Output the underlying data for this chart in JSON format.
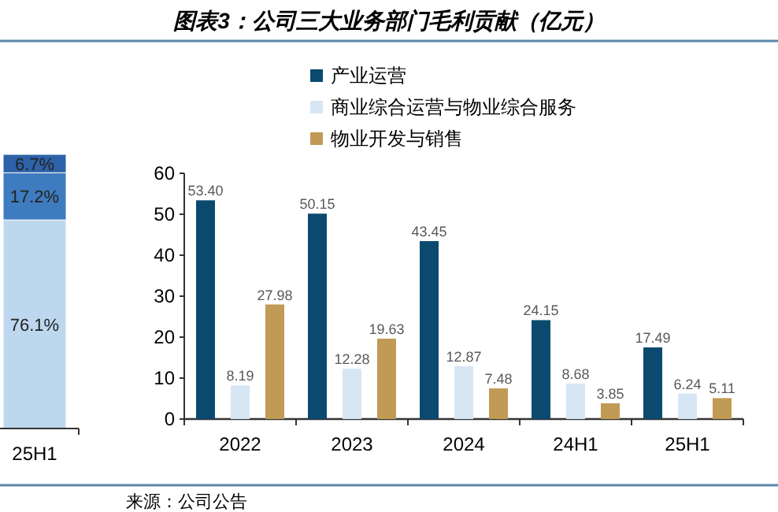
{
  "chart_data": [
    {
      "type": "bar",
      "stacked": true,
      "categories": [
        "25H1"
      ],
      "series": [
        {
          "color": "#bdd7ee",
          "values": [
            76.1
          ],
          "value_labels": [
            "76.1%"
          ]
        },
        {
          "color": "#3f7bbf",
          "values": [
            17.2
          ],
          "value_labels": [
            "17.2%"
          ]
        },
        {
          "color": "#2e62a8",
          "values": [
            6.7
          ],
          "value_labels": [
            "6.7%"
          ]
        }
      ]
    },
    {
      "type": "bar",
      "title": "图表3：公司三大业务部门毛利贡献（亿元）",
      "categories": [
        "2022",
        "2023",
        "2024",
        "24H1",
        "25H1"
      ],
      "series": [
        {
          "name": "产业运营",
          "color": "#0b4a6e",
          "values": [
            53.4,
            50.15,
            43.45,
            24.15,
            17.49
          ],
          "value_labels": [
            "53.40",
            "50.15",
            "43.45",
            "24.15",
            "17.49"
          ]
        },
        {
          "name": "商业综合运营与物业综合服务",
          "color": "#d6e6f4",
          "values": [
            8.19,
            12.28,
            12.87,
            8.68,
            6.24
          ],
          "value_labels": [
            "8.19",
            "12.28",
            "12.87",
            "8.68",
            "6.24"
          ]
        },
        {
          "name": "物业开发与销售",
          "color": "#c19a55",
          "values": [
            27.98,
            19.63,
            7.48,
            3.85,
            5.11
          ],
          "value_labels": [
            "27.98",
            "19.63",
            "7.48",
            "3.85",
            "5.11"
          ]
        }
      ],
      "ylim": [
        0,
        60
      ],
      "yticks": [
        0,
        10,
        20,
        30,
        40,
        50,
        60
      ],
      "legend": "top",
      "annotations": [
        "来源：公司公告"
      ]
    }
  ]
}
